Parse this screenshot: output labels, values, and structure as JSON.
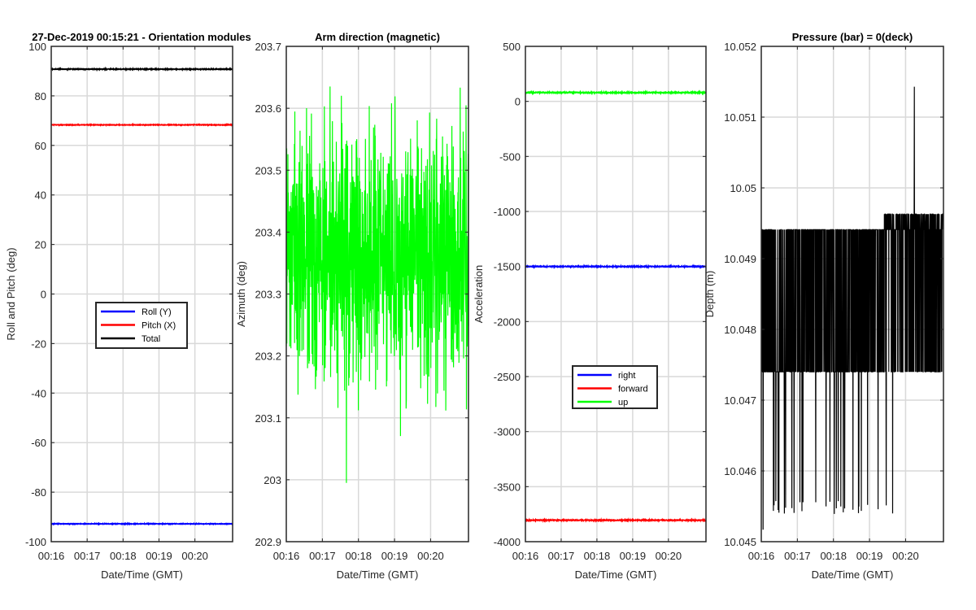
{
  "chart_data": [
    {
      "type": "line",
      "title": "27-Dec-2019 00:15:21 - Orientation modules",
      "xlabel": "Date/Time (GMT)",
      "ylabel": "Roll and Pitch (deg)",
      "x_ticks": [
        "00:16",
        "00:17",
        "00:18",
        "00:19",
        "00:20"
      ],
      "x_tick_minutes": [
        16,
        17,
        18,
        19,
        20
      ],
      "xlim_minutes": [
        16,
        21.05
      ],
      "ylim": [
        -100,
        100
      ],
      "y_ticks": [
        100,
        80,
        60,
        40,
        20,
        0,
        -20,
        -40,
        -60,
        -80,
        -100
      ],
      "y_tick_labels": [
        "100",
        "80",
        "60",
        "40",
        "20",
        "0",
        "-20",
        "-40",
        "-60",
        "-80",
        "-100"
      ],
      "grid": true,
      "legend_position": "center",
      "series": [
        {
          "name": "Roll (Y)",
          "color": "#0000ff",
          "value": -92.8,
          "noise": 0.12
        },
        {
          "name": "Pitch (X)",
          "color": "#ff0000",
          "value": 68.3,
          "noise": 0.12
        },
        {
          "name": "Total",
          "color": "#000000",
          "value": 90.8,
          "noise": 0.15
        }
      ]
    },
    {
      "type": "line",
      "title": "Arm direction (magnetic)",
      "xlabel": "Date/Time (GMT)",
      "ylabel": "Azimuth (deg)",
      "x_ticks": [
        "00:16",
        "00:17",
        "00:18",
        "00:19",
        "00:20"
      ],
      "x_tick_minutes": [
        16,
        17,
        18,
        19,
        20
      ],
      "xlim_minutes": [
        16,
        21.05
      ],
      "ylim": [
        202.9,
        203.7
      ],
      "y_ticks": [
        203.7,
        203.6,
        203.5,
        203.4,
        203.3,
        203.2,
        203.1,
        203,
        202.9
      ],
      "y_tick_labels": [
        "203.7",
        "203.6",
        "203.5",
        "203.4",
        "203.3",
        "203.2",
        "203.1",
        "203",
        "202.9"
      ],
      "grid": true,
      "series": [
        {
          "name": "",
          "color": "#00ff00",
          "center": 203.36,
          "spread": 0.13,
          "min": 202.995,
          "max": 203.67
        }
      ]
    },
    {
      "type": "line",
      "title": "",
      "xlabel": "Date/Time (GMT)",
      "ylabel": "Acceleration",
      "x_ticks": [
        "00:16",
        "00:17",
        "00:18",
        "00:19",
        "00:20"
      ],
      "x_tick_minutes": [
        16,
        17,
        18,
        19,
        20
      ],
      "xlim_minutes": [
        16,
        21.05
      ],
      "ylim": [
        -4000,
        500
      ],
      "y_ticks": [
        500,
        0,
        -500,
        -1000,
        -1500,
        -2000,
        -2500,
        -3000,
        -3500,
        -4000
      ],
      "y_tick_labels": [
        "500",
        "0",
        "-500",
        "-1000",
        "-1500",
        "-2000",
        "-2500",
        "-3000",
        "-3500",
        "-4000"
      ],
      "grid": true,
      "legend_position": "lower-center",
      "series": [
        {
          "name": "right",
          "color": "#0000ff",
          "value": -1500,
          "noise": 4
        },
        {
          "name": "forward",
          "color": "#ff0000",
          "value": -3805,
          "noise": 4
        },
        {
          "name": "up",
          "color": "#00ff00",
          "value": 80,
          "noise": 4
        }
      ]
    },
    {
      "type": "line",
      "title": "Pressure (bar) = 0(deck)",
      "xlabel": "Date/Time (GMT)",
      "ylabel": "Depth (m)",
      "x_ticks": [
        "00:16",
        "00:17",
        "00:18",
        "00:19",
        "00:20"
      ],
      "x_tick_minutes": [
        16,
        17,
        18,
        19,
        20
      ],
      "xlim_minutes": [
        16,
        21.05
      ],
      "ylim": [
        10.045,
        10.052
      ],
      "y_ticks": [
        10.052,
        10.051,
        10.05,
        10.049,
        10.048,
        10.047,
        10.046,
        10.045
      ],
      "y_tick_labels": [
        "10.052",
        "10.051",
        "10.05",
        "10.049",
        "10.048",
        "10.047",
        "10.046",
        "10.045"
      ],
      "grid": true,
      "series": [
        {
          "name": "",
          "color": "#000000",
          "low": 10.0474,
          "high": 10.04941,
          "upper_level": 10.04963,
          "lower_level": 10.04538,
          "spike_max": 10.05143,
          "min": 10.04517
        }
      ]
    }
  ]
}
